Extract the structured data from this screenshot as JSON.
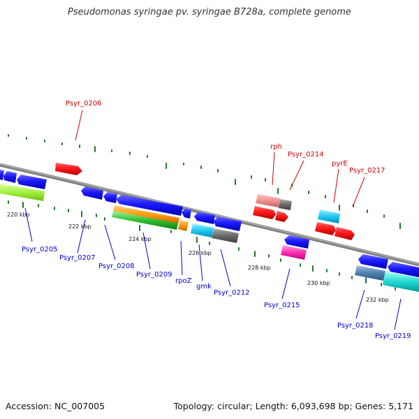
{
  "title": "Pseudomonas syringae pv. syringae B728a, complete genome",
  "footer": {
    "accession": "Accession: NC_007005",
    "summary": "Topology: circular; Length: 6,093,698 bp; Genes: 5,171"
  },
  "colors": {
    "backbone": "#8c8c8c",
    "tick": "#1e7a1e",
    "label_top": "#cc0000",
    "label_bottom": "#0000cc"
  },
  "scale_labels": [
    "220 kbp",
    "222 kbp",
    "224 kbp",
    "226 kbp",
    "228 kbp",
    "230 kbp",
    "232 kbp"
  ],
  "labels_top": [
    "Psyr_0206",
    "rph",
    "Psyr_0214",
    "pyrE",
    "Psyr_0217"
  ],
  "labels_bottom": [
    "Psyr_0205",
    "Psyr_0207",
    "Psyr_0208",
    "Psyr_0209",
    "rpoZ",
    "gmk",
    "Psyr_0212",
    "Psyr_0215",
    "Psyr_0218",
    "Psyr_0219"
  ]
}
